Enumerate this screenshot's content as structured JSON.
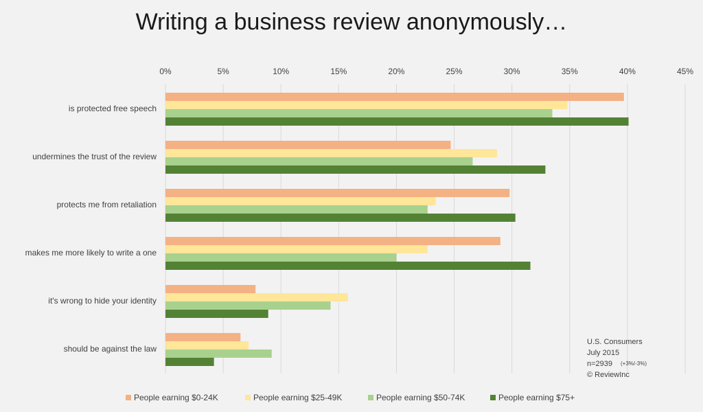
{
  "chart_data": {
    "type": "hbar",
    "title": "Writing a business review anonymously…",
    "categories": [
      "is protected free speech",
      "undermines the trust of the review",
      "protects me from retaliation",
      "makes me more likely to write a one",
      "it's wrong to hide your identity",
      "should be against the law"
    ],
    "series": [
      {
        "name": "People earning $0-24K",
        "color": "#f4b183",
        "values": [
          39.7,
          24.7,
          29.8,
          29.0,
          7.8,
          6.5
        ]
      },
      {
        "name": "People earning $25-49K",
        "color": "#ffe699",
        "values": [
          34.8,
          28.7,
          23.4,
          22.7,
          15.8,
          7.2
        ]
      },
      {
        "name": "People earning $50-74K",
        "color": "#a9d18e",
        "values": [
          33.5,
          26.6,
          22.7,
          20.0,
          14.3,
          9.2
        ]
      },
      {
        "name": "People earning $75+",
        "color": "#548235",
        "values": [
          40.1,
          32.9,
          30.3,
          31.6,
          8.9,
          4.2
        ]
      }
    ],
    "xlim": [
      0,
      45
    ],
    "xticks": [
      {
        "value": 0,
        "label": "0%"
      },
      {
        "value": 5,
        "label": "5%"
      },
      {
        "value": 10,
        "label": "10%"
      },
      {
        "value": 15,
        "label": "15%"
      },
      {
        "value": 20,
        "label": "20%"
      },
      {
        "value": 25,
        "label": "25%"
      },
      {
        "value": 30,
        "label": "30%"
      },
      {
        "value": 35,
        "label": "35%"
      },
      {
        "value": 40,
        "label": "40%"
      },
      {
        "value": 45,
        "label": "45%"
      }
    ],
    "grid": true,
    "annotation": [
      "U.S. Consumers",
      "July 2015",
      "n=2939",
      "(+3%/-3%)",
      "© ReviewInc"
    ]
  }
}
